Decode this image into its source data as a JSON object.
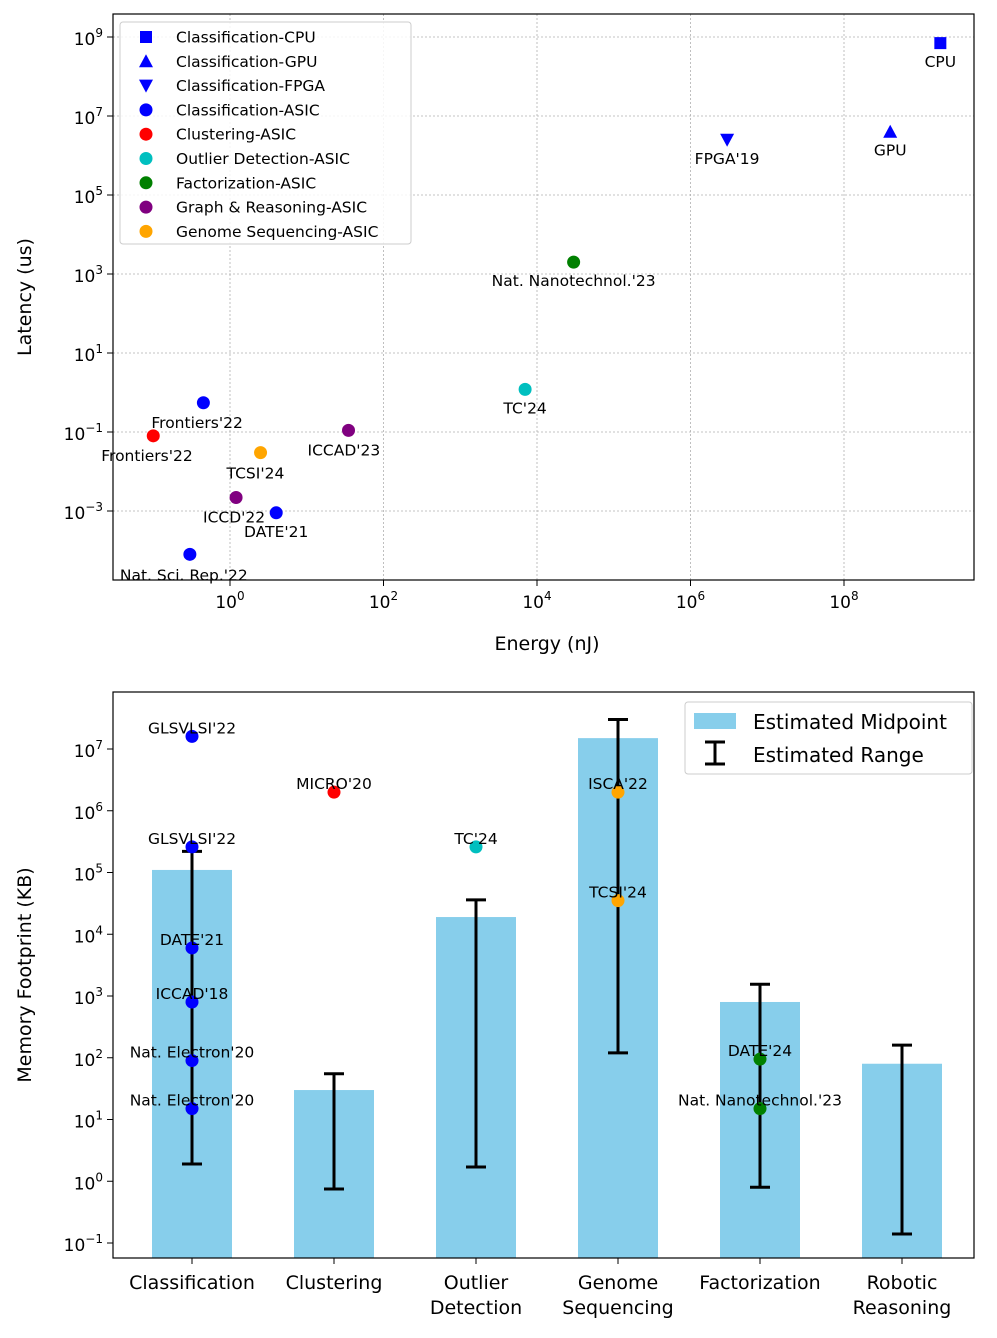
{
  "chart_data": [
    {
      "type": "scatter",
      "xlabel": "Energy (nJ)",
      "ylabel": "Latency (us)",
      "xscale": "log",
      "yscale": "log",
      "grid": true,
      "legend_position": "top-left",
      "x_ticks": [
        {
          "value": 1,
          "base": "10",
          "exp": "0"
        },
        {
          "value": 100,
          "base": "10",
          "exp": "2"
        },
        {
          "value": 10000,
          "base": "10",
          "exp": "4"
        },
        {
          "value": 1000000,
          "base": "10",
          "exp": "6"
        },
        {
          "value": 100000000,
          "base": "10",
          "exp": "8"
        }
      ],
      "y_ticks": [
        {
          "value": 0.001,
          "base": "10",
          "exp": "−3"
        },
        {
          "value": 0.1,
          "base": "10",
          "exp": "−1"
        },
        {
          "value": 10,
          "base": "10",
          "exp": "1"
        },
        {
          "value": 1000,
          "base": "10",
          "exp": "3"
        },
        {
          "value": 100000,
          "base": "10",
          "exp": "5"
        },
        {
          "value": 10000000,
          "base": "10",
          "exp": "7"
        },
        {
          "value": 1000000000,
          "base": "10",
          "exp": "9"
        }
      ],
      "series": [
        {
          "name": "Classification-CPU",
          "color": "#0000ff",
          "marker": "square"
        },
        {
          "name": "Classification-GPU",
          "color": "#0000ff",
          "marker": "triangle-up"
        },
        {
          "name": "Classification-FPGA",
          "color": "#0000ff",
          "marker": "triangle-down"
        },
        {
          "name": "Classification-ASIC",
          "color": "#0000ff",
          "marker": "circle"
        },
        {
          "name": "Clustering-ASIC",
          "color": "#ff0000",
          "marker": "circle"
        },
        {
          "name": "Outlier Detection-ASIC",
          "color": "#00bfbf",
          "marker": "circle"
        },
        {
          "name": "Factorization-ASIC",
          "color": "#008000",
          "marker": "circle"
        },
        {
          "name": "Graph & Reasoning-ASIC",
          "color": "#800080",
          "marker": "circle"
        },
        {
          "name": "Genome Sequencing-ASIC",
          "color": "#ffa500",
          "marker": "circle"
        }
      ],
      "points": [
        {
          "series": 0,
          "x": 1800000000,
          "y": 700000000,
          "label": "CPU",
          "label_pos": "below"
        },
        {
          "series": 1,
          "x": 400000000,
          "y": 4000000,
          "label": "GPU",
          "label_pos": "below"
        },
        {
          "series": 2,
          "x": 3000000,
          "y": 2500000,
          "label": "FPGA'19",
          "label_pos": "below"
        },
        {
          "series": 6,
          "x": 30000,
          "y": 2000,
          "label": "Nat. Nanotechnol.'23",
          "label_pos": "below"
        },
        {
          "series": 5,
          "x": 7000,
          "y": 1.2,
          "label": "TC'24",
          "label_pos": "below"
        },
        {
          "series": 3,
          "x": 0.45,
          "y": 0.55,
          "label": "Frontiers'22",
          "label_pos": "below-right"
        },
        {
          "series": 4,
          "x": 0.1,
          "y": 0.08,
          "label": "Frontiers'22",
          "label_pos": "below-right"
        },
        {
          "series": 7,
          "x": 35,
          "y": 0.11,
          "label": "ICCAD'23",
          "label_pos": "below-right"
        },
        {
          "series": 8,
          "x": 2.5,
          "y": 0.03,
          "label": "TCSI'24",
          "label_pos": "below-right"
        },
        {
          "series": 7,
          "x": 1.2,
          "y": 0.0022,
          "label": "ICCD'22",
          "label_pos": "below-left"
        },
        {
          "series": 3,
          "x": 4,
          "y": 0.0009,
          "label": "DATE'21",
          "label_pos": "below"
        },
        {
          "series": 3,
          "x": 0.3,
          "y": 8e-05,
          "label": "Nat. Sci. Rep.'22",
          "label_pos": "below-right"
        }
      ]
    },
    {
      "type": "bar",
      "ylabel": "Memory Footprint (KB)",
      "yscale": "log",
      "legend_position": "top-right",
      "legend": [
        {
          "name": "Estimated Midpoint",
          "kind": "bar"
        },
        {
          "name": "Estimated Range",
          "kind": "errorbar"
        }
      ],
      "categories": [
        "Classification",
        "Clustering",
        "Outlier Detection",
        "Genome Sequencing",
        "Factorization",
        "Robotic Reasoning"
      ],
      "category_lines": [
        [
          "Classification"
        ],
        [
          "Clustering"
        ],
        [
          "Outlier",
          "Detection"
        ],
        [
          "Genome",
          "Sequencing"
        ],
        [
          "Factorization"
        ],
        [
          "Robotic",
          "Reasoning"
        ]
      ],
      "bar_color": "#87ceeb",
      "midpoints": [
        110000,
        30,
        19000,
        15000000,
        800,
        80
      ],
      "range_low": [
        1.9,
        0.75,
        1.7,
        120,
        0.8,
        0.14
      ],
      "range_high": [
        220000,
        55,
        36000,
        30000000,
        1550,
        160
      ],
      "y_ticks": [
        {
          "value": 0.1,
          "base": "10",
          "exp": "−1"
        },
        {
          "value": 1,
          "base": "10",
          "exp": "0"
        },
        {
          "value": 10,
          "base": "10",
          "exp": "1"
        },
        {
          "value": 100,
          "base": "10",
          "exp": "2"
        },
        {
          "value": 1000,
          "base": "10",
          "exp": "3"
        },
        {
          "value": 10000,
          "base": "10",
          "exp": "4"
        },
        {
          "value": 100000,
          "base": "10",
          "exp": "5"
        },
        {
          "value": 1000000,
          "base": "10",
          "exp": "6"
        },
        {
          "value": 10000000,
          "base": "10",
          "exp": "7"
        }
      ],
      "points": [
        {
          "category": 0,
          "y": 16000000,
          "color": "#0000ff",
          "label": "GLSVLSI'22"
        },
        {
          "category": 0,
          "y": 260000,
          "color": "#0000ff",
          "label": "GLSVLSI'22"
        },
        {
          "category": 0,
          "y": 6000,
          "color": "#0000ff",
          "label": "DATE'21"
        },
        {
          "category": 0,
          "y": 800,
          "color": "#0000ff",
          "label": "ICCAD'18"
        },
        {
          "category": 0,
          "y": 90,
          "color": "#0000ff",
          "label": "Nat. Electron'20"
        },
        {
          "category": 0,
          "y": 15,
          "color": "#0000ff",
          "label": "Nat. Electron'20"
        },
        {
          "category": 1,
          "y": 2000000,
          "color": "#ff0000",
          "label": "MICRO'20"
        },
        {
          "category": 2,
          "y": 260000,
          "color": "#00bfbf",
          "label": "TC'24"
        },
        {
          "category": 3,
          "y": 2000000,
          "color": "#ffa500",
          "label": "ISCA'22"
        },
        {
          "category": 3,
          "y": 35000,
          "color": "#ffa500",
          "label": "TCSI'24"
        },
        {
          "category": 4,
          "y": 95,
          "color": "#008000",
          "label": "DATE'24"
        },
        {
          "category": 4,
          "y": 15,
          "color": "#008000",
          "label": "Nat. Nanotechnol.'23"
        }
      ]
    }
  ]
}
